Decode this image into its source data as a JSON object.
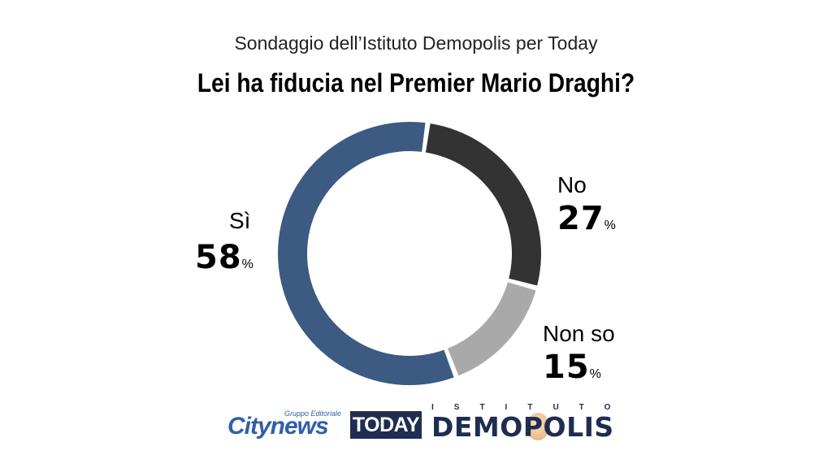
{
  "subtitle": "Sondaggio dell’Istituto Demopolis per Today",
  "title": "Lei ha fiducia nel Premier Mario Draghi?",
  "chart_data": {
    "type": "pie",
    "style": "donut",
    "title": "Lei ha fiducia nel Premier Mario Draghi?",
    "subtitle": "Sondaggio dell’Istituto Demopolis per Today",
    "unit": "%",
    "categories": [
      "No",
      "Non so",
      "Sì"
    ],
    "values": [
      27,
      15,
      58
    ],
    "colors": [
      "#333333",
      "#a9a9a9",
      "#3c5a82"
    ],
    "value_labels": [
      "27",
      "15",
      "58"
    ]
  },
  "logos": {
    "citynews_tagline": "Gruppo Editoriale",
    "citynews_name": "Citynews",
    "today_name": "TODAY",
    "demopolis_tagline": "ISTITUTO",
    "demopolis_name": "DEMOPOLIS"
  }
}
